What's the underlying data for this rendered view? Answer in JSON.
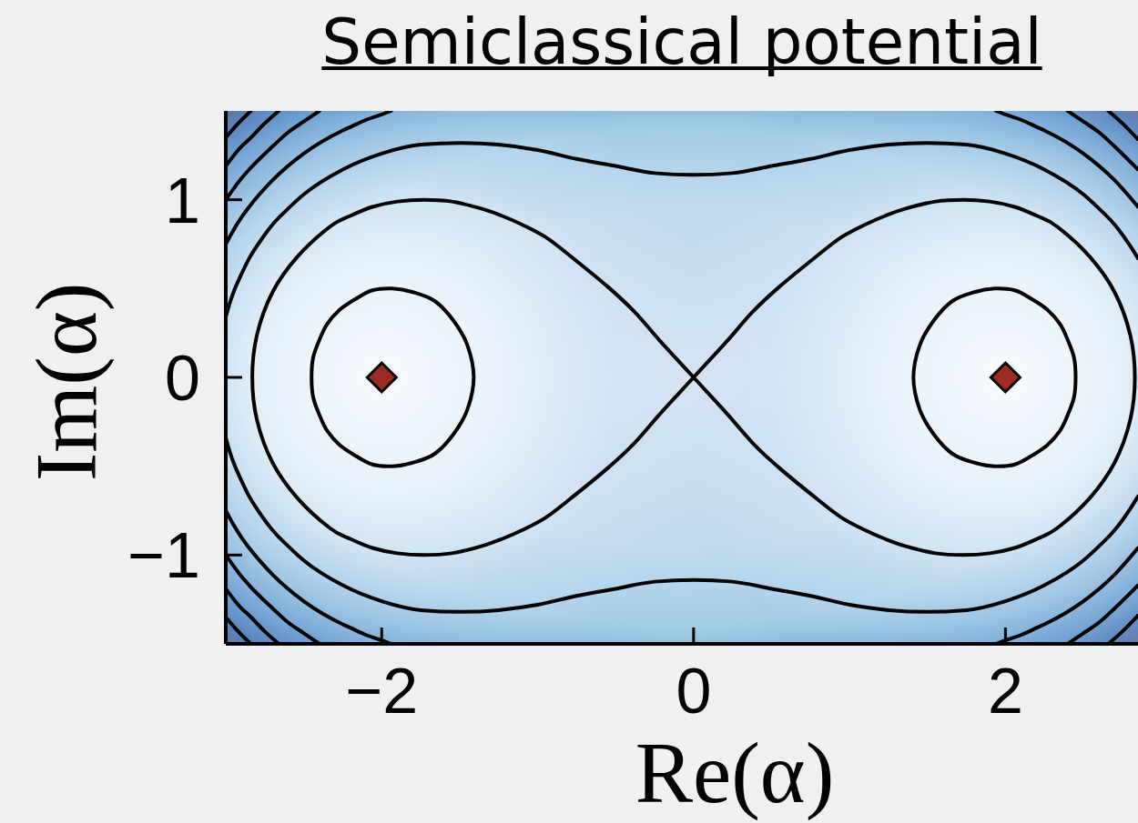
{
  "chart_data": {
    "type": "line",
    "title": "Semiclassical potential",
    "xlabel": "Re(α)",
    "ylabel": "Im(α)",
    "xlim": [
      -3,
      2.85
    ],
    "ylim": [
      -1.5,
      1.5
    ],
    "xticks": [
      {
        "value": -2,
        "label": "−2"
      },
      0,
      2
    ],
    "yticks": [
      {
        "value": -1,
        "label": "−1"
      },
      0,
      1
    ],
    "series": [
      {
        "color": "#000000",
        "x": [
          -3,
          -2.97,
          -2.95,
          -2.9,
          -2.85,
          -2.8,
          -2.7,
          -2.6,
          -2.5,
          -2.25,
          -2,
          -1.75,
          -1.5,
          -1.25,
          -1,
          -0.75,
          -0.5,
          -0.25,
          0,
          0.25,
          0.5,
          0.75,
          1,
          1.25,
          1.5,
          1.75,
          2,
          2.25,
          2.5,
          2.6,
          2.7,
          2.8,
          2.85
        ],
        "values": [
          0.34,
          0.43,
          0.48,
          0.58,
          0.67,
          0.74,
          0.86,
          0.95,
          1.03,
          1.17,
          1.26,
          1.31,
          1.32,
          1.31,
          1.28,
          1.23,
          1.19,
          1.15,
          1.14,
          1.15,
          1.19,
          1.23,
          1.28,
          1.31,
          1.32,
          1.31,
          1.26,
          1.17,
          1.03,
          0.95,
          0.86,
          0.74,
          0.67
        ]
      },
      {
        "color": "#000000",
        "x": [
          -3,
          -2.97,
          -2.95,
          -2.9,
          -2.85,
          -2.8,
          -2.7,
          -2.6,
          -2.5,
          -2.25,
          -2,
          -1.75,
          -1.5,
          -1.25,
          -1,
          -0.75,
          -0.5,
          -0.25,
          0,
          0.25,
          0.5,
          0.75,
          1,
          1.25,
          1.5,
          1.75,
          2,
          2.25,
          2.5,
          2.6,
          2.7,
          2.8,
          2.85
        ],
        "values": [
          -0.34,
          -0.43,
          -0.48,
          -0.58,
          -0.67,
          -0.74,
          -0.86,
          -0.95,
          -1.03,
          -1.17,
          -1.26,
          -1.31,
          -1.32,
          -1.31,
          -1.28,
          -1.23,
          -1.19,
          -1.15,
          -1.14,
          -1.15,
          -1.19,
          -1.23,
          -1.28,
          -1.31,
          -1.32,
          -1.31,
          -1.26,
          -1.17,
          -1.03,
          -0.95,
          -0.86,
          -0.74,
          -0.67
        ]
      },
      {
        "color": "#000000",
        "x": [
          -3,
          -2.95,
          -2.9,
          -2.85,
          -2.7,
          -2.5,
          -2.25,
          -2.2,
          -2.1,
          -2,
          -1.94
        ],
        "values": [
          0.75,
          0.83,
          0.9,
          0.96,
          1.11,
          1.26,
          1.39,
          1.41,
          1.45,
          1.48,
          1.5
        ]
      },
      {
        "color": "#000000",
        "x": [
          -3,
          -2.95,
          -2.9,
          -2.85,
          -2.7,
          -2.5,
          -2.25,
          -2.2,
          -2.1,
          -2,
          -1.94
        ],
        "values": [
          -0.75,
          -0.83,
          -0.9,
          -0.96,
          -1.11,
          -1.26,
          -1.39,
          -1.41,
          -1.45,
          -1.48,
          -1.5
        ]
      },
      {
        "color": "#000000",
        "x": [
          1.94,
          2,
          2.1,
          2.2,
          2.25,
          2.5,
          2.7,
          2.85
        ],
        "values": [
          1.5,
          1.48,
          1.45,
          1.41,
          1.39,
          1.26,
          1.11,
          0.96
        ]
      },
      {
        "color": "#000000",
        "x": [
          1.94,
          2,
          2.1,
          2.2,
          2.25,
          2.5,
          2.7,
          2.85
        ],
        "values": [
          -1.5,
          -1.48,
          -1.45,
          -1.41,
          -1.39,
          -1.26,
          -1.11,
          -0.96
        ]
      },
      {
        "color": "#000000",
        "x": [
          -3,
          -2.9,
          -2.85,
          -2.7,
          -2.6,
          -2.5,
          -2.4
        ],
        "values": [
          1.0,
          1.12,
          1.17,
          1.3,
          1.38,
          1.44,
          1.5
        ]
      },
      {
        "color": "#000000",
        "x": [
          -3,
          -2.9,
          -2.85,
          -2.7,
          -2.6,
          -2.5,
          -2.4
        ],
        "values": [
          -1.0,
          -1.12,
          -1.17,
          -1.3,
          -1.38,
          -1.44,
          -1.5
        ]
      },
      {
        "color": "#000000",
        "x": [
          2.4,
          2.5,
          2.6,
          2.7,
          2.85
        ],
        "values": [
          1.5,
          1.44,
          1.38,
          1.3,
          1.17
        ]
      },
      {
        "color": "#000000",
        "x": [
          2.4,
          2.5,
          2.6,
          2.7,
          2.85
        ],
        "values": [
          -1.5,
          -1.44,
          -1.38,
          -1.3,
          -1.17
        ]
      },
      {
        "color": "#000000",
        "x": [
          -3,
          -2.9,
          -2.85,
          -2.75,
          -2.66
        ],
        "values": [
          1.19,
          1.3,
          1.34,
          1.43,
          1.5
        ]
      },
      {
        "color": "#000000",
        "x": [
          -3,
          -2.9,
          -2.85,
          -2.75,
          -2.66
        ],
        "values": [
          -1.19,
          -1.3,
          -1.34,
          -1.43,
          -1.5
        ]
      },
      {
        "color": "#000000",
        "x": [
          2.66,
          2.75,
          2.85
        ],
        "values": [
          1.5,
          1.43,
          1.34
        ]
      },
      {
        "color": "#000000",
        "x": [
          2.66,
          2.75,
          2.85
        ],
        "values": [
          -1.5,
          -1.43,
          -1.34
        ]
      },
      {
        "color": "#000000",
        "x": [
          -3,
          -2.92,
          -2.84
        ],
        "values": [
          1.35,
          1.43,
          1.5
        ]
      },
      {
        "color": "#000000",
        "x": [
          -3,
          -2.92,
          -2.84
        ],
        "values": [
          -1.35,
          -1.43,
          -1.5
        ]
      },
      {
        "type": "scatter",
        "marker": "diamond",
        "color": "#9c2b23",
        "x": [
          -2,
          2
        ],
        "values": [
          0,
          0
        ]
      }
    ]
  }
}
